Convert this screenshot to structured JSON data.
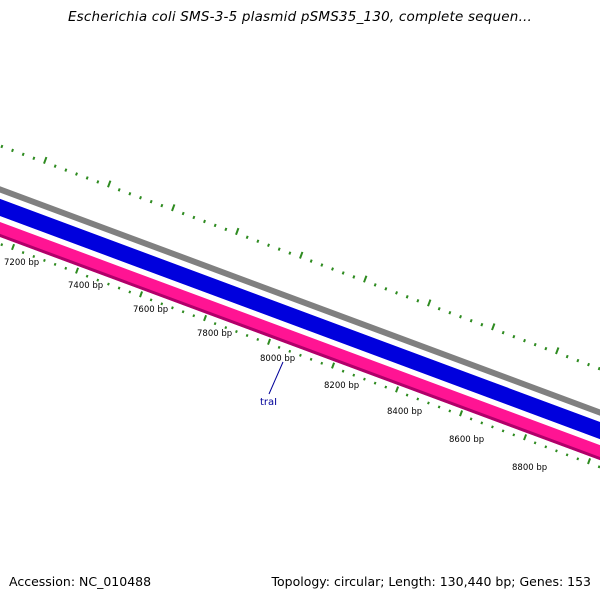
{
  "title": "Escherichia coli SMS-3-5 plasmid pSMS35_130, complete sequen...",
  "accession_label": "Accession: NC_010488",
  "summary_label": "Topology: circular; Length: 130,440 bp; Genes: 153",
  "position_labels": [
    "7200 bp",
    "7400 bp",
    "7600 bp",
    "7800 bp",
    "8000 bp",
    "8200 bp",
    "8400 bp",
    "8600 bp",
    "8800 bp"
  ],
  "gene": {
    "name": "traI",
    "color": "#000099"
  },
  "colors": {
    "background": "#ffffff",
    "ring_gray": "#808080",
    "ring_blue": "#0000ee",
    "ring_pink": "#ff1493",
    "ring_pink_dark": "#b0006a",
    "tick_green": "#2e8b20",
    "label_text": "#000000"
  },
  "icons": []
}
